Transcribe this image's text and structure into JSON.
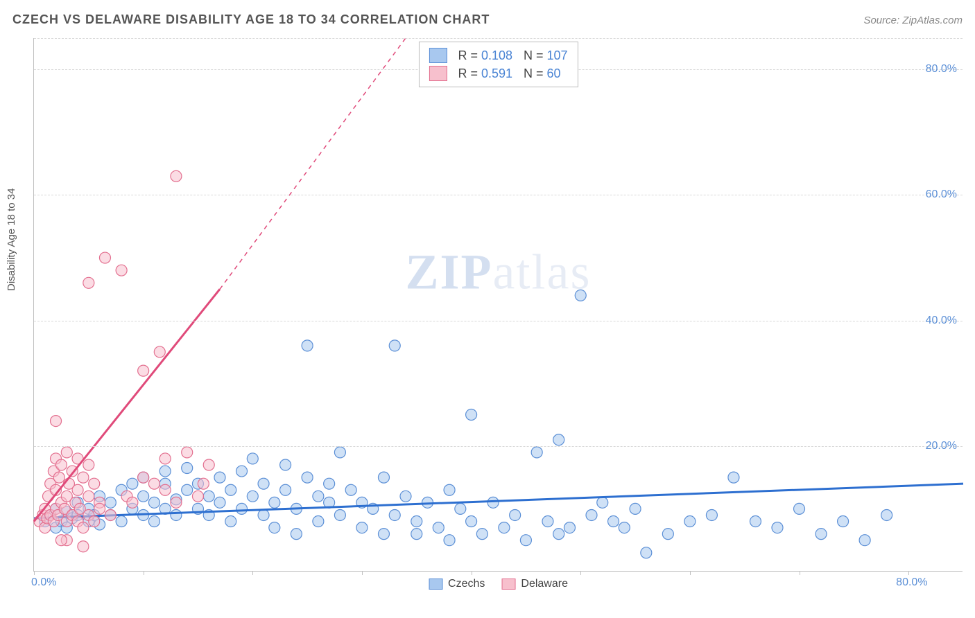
{
  "header": {
    "title": "CZECH VS DELAWARE DISABILITY AGE 18 TO 34 CORRELATION CHART",
    "source": "Source: ZipAtlas.com"
  },
  "chart": {
    "type": "scatter",
    "ylabel": "Disability Age 18 to 34",
    "xlim": [
      0,
      85
    ],
    "ylim": [
      0,
      85
    ],
    "x_ticks_at": [
      0,
      10,
      20,
      30,
      40,
      50,
      60,
      70,
      80
    ],
    "x_tick_labels": {
      "0": "0.0%",
      "80": "80.0%"
    },
    "y_gridlines": [
      20,
      40,
      60,
      80,
      85
    ],
    "y_tick_labels": {
      "20": "20.0%",
      "40": "40.0%",
      "60": "60.0%",
      "80": "80.0%"
    },
    "background_color": "#ffffff",
    "grid_color": "#d8d8d8",
    "marker_radius": 8,
    "marker_opacity": 0.55,
    "watermark_text_bold": "ZIP",
    "watermark_text_rest": "atlas",
    "series": [
      {
        "name": "Czechs",
        "color_fill": "#a8c8ef",
        "color_stroke": "#5b8fd6",
        "R": "0.108",
        "N": "107",
        "trend": {
          "x1": 0,
          "y1": 8.5,
          "x2": 85,
          "y2": 14.0,
          "color": "#2d6fd0",
          "width": 3
        },
        "points": [
          [
            1,
            8
          ],
          [
            1.5,
            9
          ],
          [
            2,
            7
          ],
          [
            2,
            10
          ],
          [
            2.5,
            8
          ],
          [
            3,
            9.5
          ],
          [
            3,
            7
          ],
          [
            3.5,
            8.5
          ],
          [
            4,
            9
          ],
          [
            4,
            11
          ],
          [
            5,
            8
          ],
          [
            5,
            10
          ],
          [
            5.5,
            9
          ],
          [
            6,
            7.5
          ],
          [
            6,
            12
          ],
          [
            7,
            9
          ],
          [
            7,
            11
          ],
          [
            8,
            8
          ],
          [
            8,
            13
          ],
          [
            9,
            10
          ],
          [
            9,
            14
          ],
          [
            10,
            9
          ],
          [
            10,
            12
          ],
          [
            10,
            15
          ],
          [
            11,
            8
          ],
          [
            11,
            11
          ],
          [
            12,
            10
          ],
          [
            12,
            16
          ],
          [
            12,
            14
          ],
          [
            13,
            9
          ],
          [
            13,
            11.5
          ],
          [
            14,
            13
          ],
          [
            14,
            16.5
          ],
          [
            15,
            10
          ],
          [
            15,
            14
          ],
          [
            16,
            12
          ],
          [
            16,
            9
          ],
          [
            17,
            15
          ],
          [
            17,
            11
          ],
          [
            18,
            8
          ],
          [
            18,
            13
          ],
          [
            19,
            10
          ],
          [
            19,
            16
          ],
          [
            20,
            12
          ],
          [
            20,
            18
          ],
          [
            21,
            9
          ],
          [
            21,
            14
          ],
          [
            22,
            11
          ],
          [
            22,
            7
          ],
          [
            23,
            13
          ],
          [
            23,
            17
          ],
          [
            24,
            10
          ],
          [
            24,
            6
          ],
          [
            25,
            15
          ],
          [
            25,
            36
          ],
          [
            26,
            12
          ],
          [
            26,
            8
          ],
          [
            27,
            11
          ],
          [
            27,
            14
          ],
          [
            28,
            9
          ],
          [
            28,
            19
          ],
          [
            29,
            13
          ],
          [
            30,
            7
          ],
          [
            30,
            11
          ],
          [
            31,
            10
          ],
          [
            32,
            6
          ],
          [
            32,
            15
          ],
          [
            33,
            9
          ],
          [
            33,
            36
          ],
          [
            34,
            12
          ],
          [
            35,
            8
          ],
          [
            35,
            6
          ],
          [
            36,
            11
          ],
          [
            37,
            7
          ],
          [
            38,
            13
          ],
          [
            38,
            5
          ],
          [
            39,
            10
          ],
          [
            40,
            8
          ],
          [
            40,
            25
          ],
          [
            41,
            6
          ],
          [
            42,
            11
          ],
          [
            43,
            7
          ],
          [
            44,
            9
          ],
          [
            45,
            5
          ],
          [
            46,
            19
          ],
          [
            47,
            8
          ],
          [
            48,
            6
          ],
          [
            48,
            21
          ],
          [
            49,
            7
          ],
          [
            50,
            44
          ],
          [
            51,
            9
          ],
          [
            52,
            11
          ],
          [
            53,
            8
          ],
          [
            54,
            7
          ],
          [
            55,
            10
          ],
          [
            56,
            3
          ],
          [
            58,
            6
          ],
          [
            60,
            8
          ],
          [
            62,
            9
          ],
          [
            64,
            15
          ],
          [
            66,
            8
          ],
          [
            68,
            7
          ],
          [
            70,
            10
          ],
          [
            72,
            6
          ],
          [
            74,
            8
          ],
          [
            76,
            5
          ],
          [
            78,
            9
          ]
        ]
      },
      {
        "name": "Delaware",
        "color_fill": "#f7c0cd",
        "color_stroke": "#e36f8f",
        "R": "0.591",
        "N": "60",
        "trend": {
          "x1": 0,
          "y1": 8,
          "x2": 17,
          "y2": 45,
          "color": "#e04a7a",
          "width": 3,
          "dash_extend_to": [
            34,
            85
          ]
        },
        "points": [
          [
            0.5,
            8
          ],
          [
            0.8,
            9
          ],
          [
            1,
            7
          ],
          [
            1,
            10
          ],
          [
            1.2,
            8.5
          ],
          [
            1.3,
            12
          ],
          [
            1.5,
            9
          ],
          [
            1.5,
            14
          ],
          [
            1.8,
            8
          ],
          [
            1.8,
            16
          ],
          [
            2,
            10
          ],
          [
            2,
            13
          ],
          [
            2,
            18
          ],
          [
            2.2,
            9
          ],
          [
            2.3,
            15
          ],
          [
            2.5,
            11
          ],
          [
            2.5,
            17
          ],
          [
            2.8,
            10
          ],
          [
            3,
            8
          ],
          [
            3,
            12
          ],
          [
            3,
            19
          ],
          [
            3.2,
            14
          ],
          [
            3.5,
            9
          ],
          [
            3.5,
            16
          ],
          [
            3.8,
            11
          ],
          [
            4,
            8
          ],
          [
            4,
            13
          ],
          [
            4,
            18
          ],
          [
            4.2,
            10
          ],
          [
            4.5,
            15
          ],
          [
            4.5,
            7
          ],
          [
            5,
            9
          ],
          [
            5,
            12
          ],
          [
            5,
            17
          ],
          [
            5.5,
            14
          ],
          [
            5.5,
            8
          ],
          [
            6,
            11
          ],
          [
            2,
            24
          ],
          [
            3,
            5
          ],
          [
            4.5,
            4
          ],
          [
            2.5,
            5
          ],
          [
            5,
            46
          ],
          [
            6,
            10
          ],
          [
            6.5,
            50
          ],
          [
            7,
            9
          ],
          [
            8,
            48
          ],
          [
            8.5,
            12
          ],
          [
            9,
            11
          ],
          [
            10,
            15
          ],
          [
            10,
            32
          ],
          [
            11,
            14
          ],
          [
            11.5,
            35
          ],
          [
            12,
            18
          ],
          [
            12,
            13
          ],
          [
            13,
            11
          ],
          [
            13,
            63
          ],
          [
            14,
            19
          ],
          [
            15,
            12
          ],
          [
            15.5,
            14
          ],
          [
            16,
            17
          ]
        ]
      }
    ]
  },
  "legend_bottom": [
    {
      "label": "Czechs",
      "fill": "#a8c8ef",
      "stroke": "#5b8fd6"
    },
    {
      "label": "Delaware",
      "fill": "#f7c0cd",
      "stroke": "#e36f8f"
    }
  ]
}
